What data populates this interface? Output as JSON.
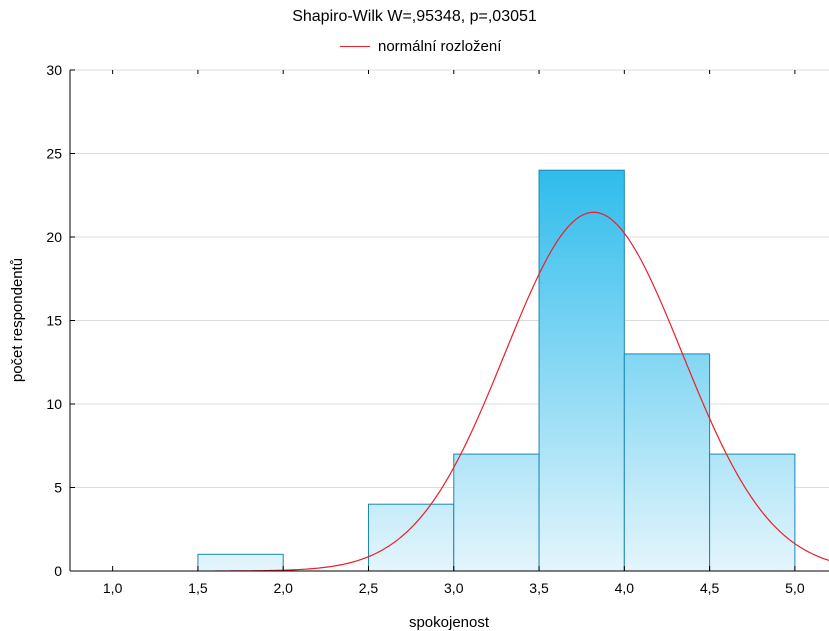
{
  "chart_data": {
    "type": "bar",
    "title": "Shapiro-Wilk W=,95348, p=,03051",
    "xlabel": "spokojenost",
    "ylabel": "počet respondentů",
    "legend": [
      "normální rozložení"
    ],
    "legend_position": "top-center",
    "grid": true,
    "xlim": [
      0.75,
      5.2
    ],
    "ylim": [
      0,
      30
    ],
    "x_ticks": [
      "1,0",
      "1,5",
      "2,0",
      "2,5",
      "3,0",
      "3,5",
      "4,0",
      "4,5",
      "5,0"
    ],
    "x_tick_values": [
      1.0,
      1.5,
      2.0,
      2.5,
      3.0,
      3.5,
      4.0,
      4.5,
      5.0
    ],
    "y_ticks": [
      "0",
      "5",
      "10",
      "15",
      "20",
      "25",
      "30"
    ],
    "y_tick_values": [
      0,
      5,
      10,
      15,
      20,
      25,
      30
    ],
    "bins": [
      {
        "from": 1.5,
        "to": 2.0,
        "count": 1
      },
      {
        "from": 2.0,
        "to": 2.5,
        "count": 0
      },
      {
        "from": 2.5,
        "to": 3.0,
        "count": 4
      },
      {
        "from": 3.0,
        "to": 3.5,
        "count": 7
      },
      {
        "from": 3.5,
        "to": 4.0,
        "count": 24
      },
      {
        "from": 4.0,
        "to": 4.5,
        "count": 13
      },
      {
        "from": 4.5,
        "to": 5.0,
        "count": 7
      }
    ],
    "curve": {
      "name": "normální rozložení",
      "distribution": "normal",
      "mean": 3.82,
      "sd": 0.52,
      "n": 56,
      "bin_width": 0.5
    },
    "colors": {
      "bar_top": "#2fbcec",
      "bar_bottom": "#e4f5fc",
      "bar_stroke": "#1a86b5",
      "curve": "#e8202a",
      "grid": "#dcdcdc"
    }
  }
}
